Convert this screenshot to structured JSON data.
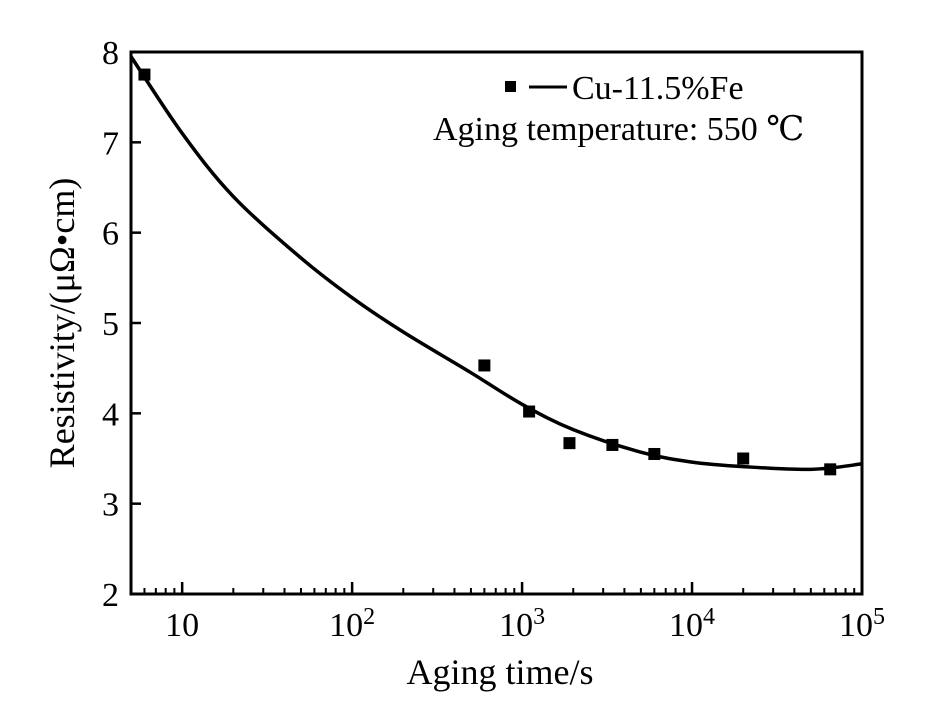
{
  "chart_data": {
    "type": "scatter",
    "title": "",
    "xlabel": "Aging time/s",
    "ylabel": "Resistivity/(μΩ•cm)",
    "xscale": "log",
    "xlim": [
      5,
      100000
    ],
    "ylim": [
      2,
      8
    ],
    "x_ticks": [
      {
        "value": 10,
        "base": "10",
        "exp": ""
      },
      {
        "value": 100,
        "base": "10",
        "exp": "2"
      },
      {
        "value": 1000,
        "base": "10",
        "exp": "3"
      },
      {
        "value": 10000,
        "base": "10",
        "exp": "4"
      },
      {
        "value": 100000,
        "base": "10",
        "exp": "5"
      }
    ],
    "y_ticks": [
      2,
      3,
      4,
      5,
      6,
      7,
      8
    ],
    "grid": false,
    "legend_position": "top-right",
    "series": [
      {
        "name": "Cu-11.5%Fe",
        "marker": "square",
        "points": [
          {
            "x": 6,
            "y": 7.75
          },
          {
            "x": 600,
            "y": 4.53
          },
          {
            "x": 1100,
            "y": 4.02
          },
          {
            "x": 1900,
            "y": 3.67
          },
          {
            "x": 3400,
            "y": 3.65
          },
          {
            "x": 6000,
            "y": 3.55
          },
          {
            "x": 20000,
            "y": 3.5
          },
          {
            "x": 65000,
            "y": 3.38
          }
        ],
        "fit_curve": [
          {
            "x": 5,
            "y": 7.95
          },
          {
            "x": 10,
            "y": 7.1
          },
          {
            "x": 20,
            "y": 6.4
          },
          {
            "x": 50,
            "y": 5.72
          },
          {
            "x": 100,
            "y": 5.28
          },
          {
            "x": 200,
            "y": 4.9
          },
          {
            "x": 500,
            "y": 4.45
          },
          {
            "x": 1000,
            "y": 4.1
          },
          {
            "x": 2000,
            "y": 3.82
          },
          {
            "x": 5000,
            "y": 3.57
          },
          {
            "x": 10000,
            "y": 3.46
          },
          {
            "x": 20000,
            "y": 3.41
          },
          {
            "x": 50000,
            "y": 3.38
          },
          {
            "x": 100000,
            "y": 3.44
          }
        ]
      }
    ],
    "annotation": "Aging temperature: 550 ℃",
    "colors": {
      "ink": "#000000",
      "background": "#ffffff"
    }
  }
}
